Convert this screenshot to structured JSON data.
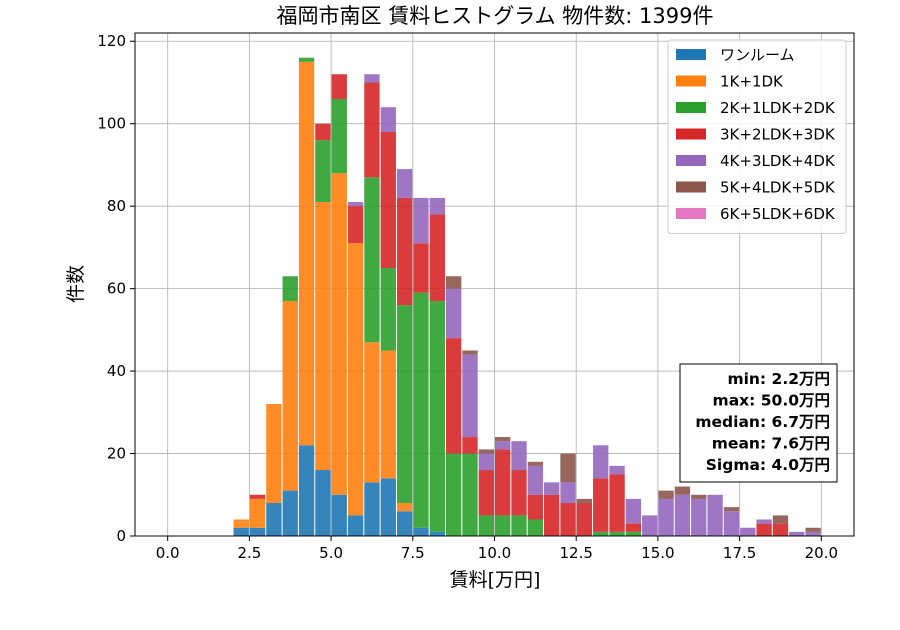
{
  "chart_data": {
    "type": "bar",
    "stacked": true,
    "title": "福岡市南区 賃料ヒストグラム 物件数: 1399件",
    "xlabel": "賃料[万円]",
    "ylabel": "件数",
    "xlim": [
      -1,
      21
    ],
    "ylim": [
      0,
      122
    ],
    "xticks": [
      0,
      2.5,
      5,
      7.5,
      10,
      12.5,
      15,
      17.5,
      20
    ],
    "xtick_labels": [
      "0.0",
      "2.5",
      "5.0",
      "7.5",
      "10.0",
      "12.5",
      "15.0",
      "17.5",
      "20.0"
    ],
    "yticks": [
      0,
      20,
      40,
      60,
      80,
      100,
      120
    ],
    "ytick_labels": [
      "0",
      "20",
      "40",
      "60",
      "80",
      "100",
      "120"
    ],
    "grid": true,
    "legend_position": "upper right",
    "bin_width": 0.5,
    "x": [
      0,
      0.5,
      1,
      1.5,
      2,
      2.5,
      3,
      3.5,
      4,
      4.5,
      5,
      5.5,
      6,
      6.5,
      7,
      7.5,
      8,
      8.5,
      9,
      9.5,
      10,
      10.5,
      11,
      11.5,
      12,
      12.5,
      13,
      13.5,
      14,
      14.5,
      15,
      15.5,
      16,
      16.5,
      17,
      17.5,
      18,
      18.5,
      19,
      19.5
    ],
    "series": [
      {
        "name": "ワンルーム",
        "color": "#1f77b4",
        "values": [
          0,
          0,
          0,
          0,
          2,
          2,
          8,
          11,
          22,
          16,
          10,
          5,
          13,
          14,
          6,
          2,
          1,
          0,
          0,
          0,
          0,
          0,
          0,
          0,
          0,
          0,
          0,
          0,
          0,
          0,
          0,
          0,
          0,
          0,
          0,
          0,
          0,
          0,
          0,
          0
        ]
      },
      {
        "name": "1K+1DK",
        "color": "#ff7f0e",
        "values": [
          0,
          0,
          0,
          0,
          2,
          7,
          24,
          46,
          93,
          65,
          78,
          66,
          34,
          31,
          2,
          0,
          0,
          0,
          0,
          0,
          0,
          0,
          0,
          0,
          0,
          0,
          0,
          0,
          0,
          0,
          0,
          0,
          0,
          0,
          0,
          0,
          0,
          0,
          0,
          0
        ]
      },
      {
        "name": "2K+1LDK+2DK",
        "color": "#2ca02c",
        "values": [
          0,
          0,
          0,
          0,
          0,
          0,
          0,
          6,
          1,
          15,
          18,
          0,
          40,
          20,
          48,
          57,
          56,
          20,
          20,
          5,
          5,
          5,
          4,
          0,
          0,
          0,
          1,
          1,
          1,
          0,
          0,
          0,
          0,
          0,
          0,
          0,
          0,
          0,
          0,
          0
        ]
      },
      {
        "name": "3K+2LDK+3DK",
        "color": "#d62728",
        "values": [
          0,
          0,
          0,
          0,
          0,
          1,
          0,
          0,
          0,
          4,
          6,
          9,
          23,
          33,
          26,
          12,
          21,
          28,
          4,
          11,
          16,
          11,
          6,
          10,
          8,
          8,
          13,
          14,
          2,
          0,
          0,
          0,
          0,
          0,
          0,
          0,
          3,
          3,
          0,
          0
        ]
      },
      {
        "name": "4K+3LDK+4DK",
        "color": "#9467bd",
        "values": [
          0,
          0,
          0,
          0,
          0,
          0,
          0,
          0,
          0,
          0,
          0,
          1,
          2,
          6,
          7,
          11,
          4,
          12,
          20,
          4,
          2,
          7,
          7,
          3,
          5,
          0,
          8,
          2,
          6,
          5,
          9,
          10,
          9,
          10,
          6,
          2,
          1,
          0,
          1,
          1
        ]
      },
      {
        "name": "5K+4LDK+5DK",
        "color": "#8c564b",
        "values": [
          0,
          0,
          0,
          0,
          0,
          0,
          0,
          0,
          0,
          0,
          0,
          0,
          0,
          0,
          0,
          0,
          0,
          3,
          1,
          1,
          1,
          0,
          1,
          0,
          7,
          1,
          0,
          0,
          0,
          0,
          2,
          2,
          1,
          0,
          1,
          0,
          0,
          2,
          0,
          1
        ]
      },
      {
        "name": "6K+5LDK+6DK",
        "color": "#e377c2",
        "values": [
          0,
          0,
          0,
          0,
          0,
          0,
          0,
          0,
          0,
          0,
          0,
          0,
          0,
          0,
          0,
          0,
          0,
          0,
          0,
          0,
          0,
          0,
          0,
          0,
          0,
          0,
          0,
          0,
          0,
          0,
          0,
          0,
          0,
          0,
          0,
          0,
          0,
          0,
          0,
          0
        ]
      }
    ],
    "stats_box": [
      "min: 2.2万円",
      "max: 50.0万円",
      "median: 6.7万円",
      "mean: 7.6万円",
      "Sigma: 4.0万円"
    ]
  }
}
